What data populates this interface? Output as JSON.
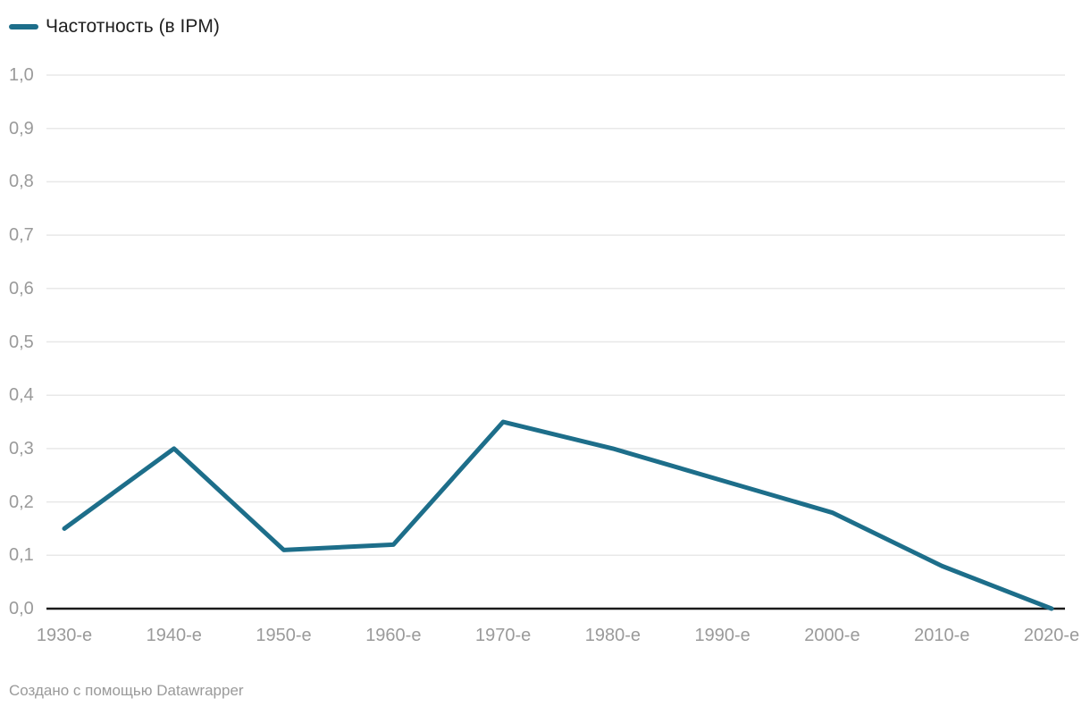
{
  "legend": {
    "label": "Частотность (в IPM)"
  },
  "footer": {
    "text": "Создано с помощью Datawrapper"
  },
  "colors": {
    "line": "#1d6e8a",
    "grid": "#e8e8e8",
    "baseline": "#1a1a1a",
    "axis_text": "#9a9a9a",
    "legend_text": "#1f1f1f",
    "footer_text": "#9a9a9a",
    "background": "#ffffff"
  },
  "chart_data": {
    "type": "line",
    "title": "",
    "xlabel": "",
    "ylabel": "",
    "categories": [
      "1930-е",
      "1940-е",
      "1950-е",
      "1960-е",
      "1970-е",
      "1980-е",
      "1990-е",
      "2000-е",
      "2010-е",
      "2020-е"
    ],
    "series": [
      {
        "name": "Частотность (в IPM)",
        "values": [
          0.15,
          0.3,
          0.11,
          0.12,
          0.35,
          0.3,
          0.24,
          0.18,
          0.08,
          0.0
        ]
      }
    ],
    "ylim": [
      0,
      1
    ],
    "ytick_values": [
      1.0,
      0.9,
      0.8,
      0.7,
      0.6,
      0.5,
      0.4,
      0.3,
      0.2,
      0.1,
      0.0
    ],
    "ytick_labels": [
      "1,0",
      "0,9",
      "0,8",
      "0,7",
      "0,6",
      "0,5",
      "0,4",
      "0,3",
      "0,2",
      "0,1",
      "0,0"
    ],
    "grid": "horizontal",
    "legend_position": "top-left"
  }
}
